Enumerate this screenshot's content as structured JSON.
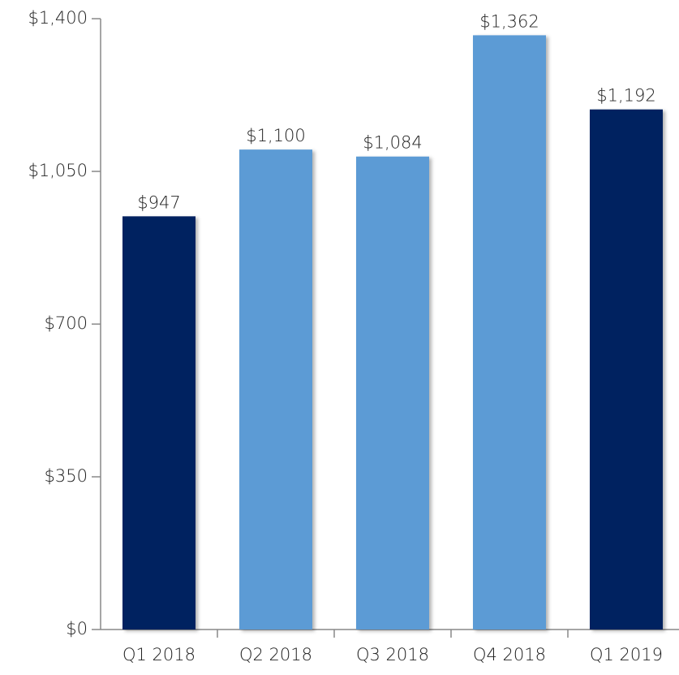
{
  "chart_data": {
    "type": "bar",
    "categories": [
      "Q1 2018",
      "Q2 2018",
      "Q3 2018",
      "Q4 2018",
      "Q1 2019"
    ],
    "values": [
      947,
      1100,
      1084,
      1362,
      1192
    ],
    "value_labels": [
      "$947",
      "$1,100",
      "$1,084",
      "$1,362",
      "$1,192"
    ],
    "colors": [
      "#002060",
      "#5b9bd5",
      "#5b9bd5",
      "#5b9bd5",
      "#002060"
    ],
    "ylim": [
      0,
      1400
    ],
    "yticks": [
      {
        "value": 0,
        "label": "$0"
      },
      {
        "value": 350,
        "label": "$350"
      },
      {
        "value": 700,
        "label": "$700"
      },
      {
        "value": 1050,
        "label": "$1,050"
      },
      {
        "value": 1400,
        "label": "$1,400"
      }
    ],
    "grid": false
  }
}
